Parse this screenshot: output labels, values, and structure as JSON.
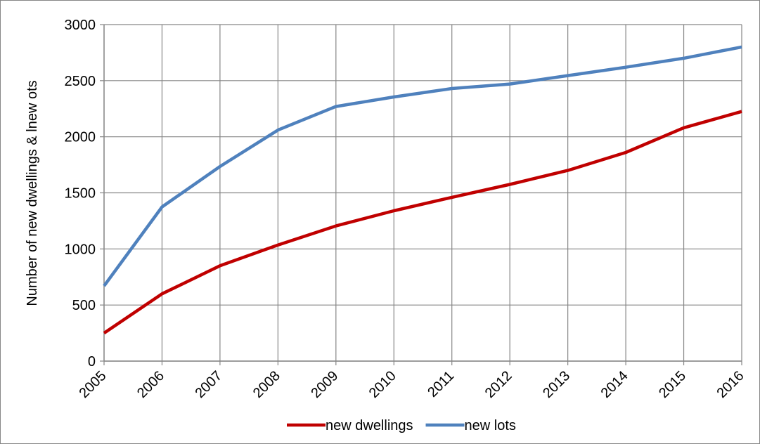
{
  "chart_data": {
    "type": "line",
    "title": "",
    "xlabel": "",
    "ylabel": "Number of new  dwellings & lnew ots",
    "categories": [
      "2005",
      "2006",
      "2007",
      "2008",
      "2009",
      "2010",
      "2011",
      "2012",
      "2013",
      "2014",
      "2015",
      "2016"
    ],
    "ylim": [
      0,
      3000
    ],
    "yticks": [
      0,
      500,
      1000,
      1500,
      2000,
      2500,
      3000
    ],
    "grid": true,
    "legend_position": "bottom",
    "series": [
      {
        "name": "new dwellings",
        "color": "#c00000",
        "values": [
          250,
          600,
          850,
          1035,
          1205,
          1340,
          1460,
          1575,
          1700,
          1860,
          2080,
          2225
        ]
      },
      {
        "name": "new lots",
        "color": "#4f81bd",
        "values": [
          670,
          1375,
          1735,
          2060,
          2270,
          2355,
          2430,
          2470,
          2545,
          2620,
          2700,
          2800
        ]
      }
    ]
  }
}
